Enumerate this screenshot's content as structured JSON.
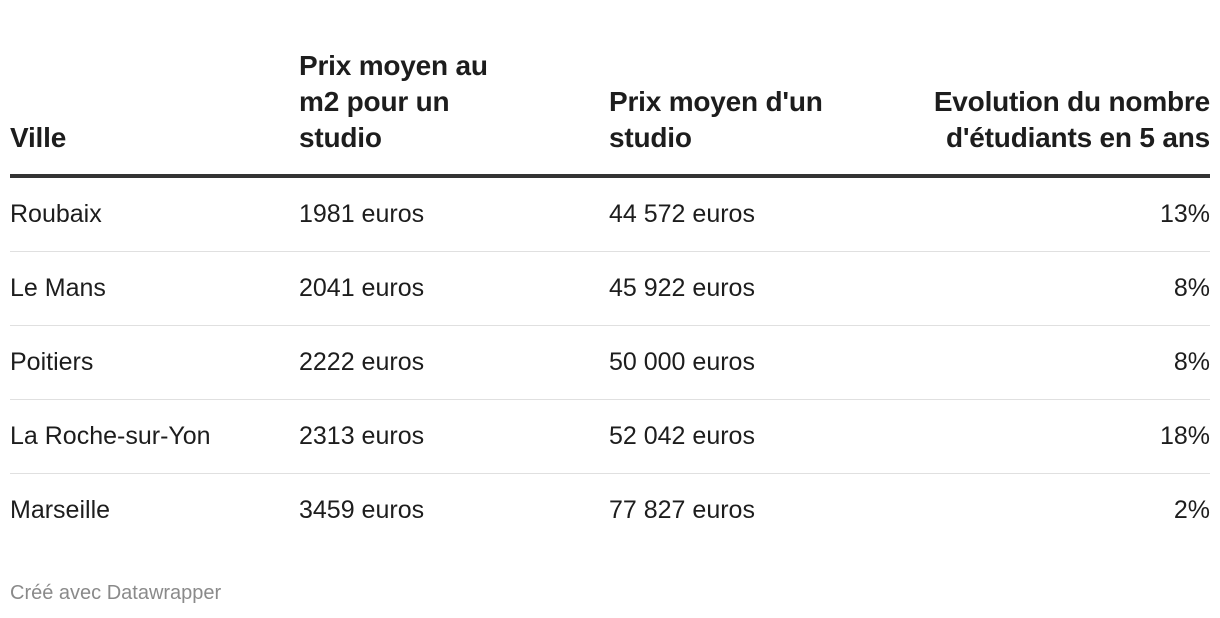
{
  "chart_data": {
    "type": "table",
    "columns": [
      "Ville",
      "Prix moyen au m2 pour un studio",
      "Prix moyen d'un studio",
      "Evolution du nombre d'étudiants en 5 ans"
    ],
    "rows": [
      [
        "Roubaix",
        "1981 euros",
        "44 572 euros",
        "13%"
      ],
      [
        "Le Mans",
        "2041 euros",
        "45 922 euros",
        "8%"
      ],
      [
        "Poitiers",
        "2222 euros",
        "50 000 euros",
        "8%"
      ],
      [
        "La Roche-sur-Yon",
        "2313 euros",
        "52 042 euros",
        "18%"
      ],
      [
        "Marseille",
        "3459 euros",
        "77 827 euros",
        "2%"
      ]
    ]
  },
  "footer": {
    "credit": "Créé avec Datawrapper"
  }
}
